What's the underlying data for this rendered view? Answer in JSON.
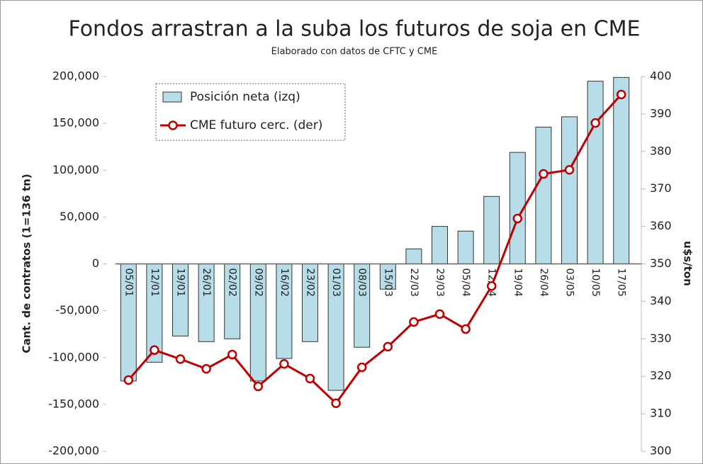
{
  "chart_data": {
    "type": "combo",
    "title": "Fondos arrastran a la suba los futuros de soja en CME",
    "subtitle": "Elaborado con datos de CFTC y CME",
    "ylabel": "Cant. de contratos (1=136 tn)",
    "y2label": "u$s/ton",
    "categories": [
      "05/01",
      "12/01",
      "19/01",
      "26/01",
      "02/02",
      "09/02",
      "16/02",
      "23/02",
      "01/03",
      "08/03",
      "15/03",
      "22/03",
      "29/03",
      "05/04",
      "12/04",
      "19/04",
      "26/04",
      "03/05",
      "10/05",
      "17/05"
    ],
    "series": [
      {
        "name": "Posición neta (izq)",
        "type": "bar",
        "axis": "y",
        "color": "#b7dde8",
        "values": [
          -125000,
          -105000,
          -77000,
          -83000,
          -80000,
          -125000,
          -101000,
          -83000,
          -135000,
          -89000,
          -27000,
          16000,
          40000,
          35000,
          72000,
          119000,
          146000,
          157000,
          195000,
          199000
        ]
      },
      {
        "name": "CME futuro cerc. (der)",
        "type": "line",
        "axis": "y2",
        "color": "#c00000",
        "values": [
          319,
          327,
          324.6,
          322,
          325.8,
          317.3,
          323.3,
          319.4,
          312.8,
          322.4,
          327.9,
          334.5,
          336.6,
          332.6,
          344.1,
          362.1,
          374,
          375.1,
          387.6,
          395.2
        ]
      }
    ],
    "ylim": [
      -200000,
      200000
    ],
    "yticks": [
      {
        "value": -200000,
        "label": "-200,000"
      },
      {
        "value": -150000,
        "label": "-150,000"
      },
      {
        "value": -100000,
        "label": "-100,000"
      },
      {
        "value": -50000,
        "label": "-50,000"
      },
      0,
      {
        "value": 50000,
        "label": "50,000"
      },
      {
        "value": 100000,
        "label": "100,000"
      },
      {
        "value": 150000,
        "label": "150,000"
      },
      {
        "value": 200000,
        "label": "200,000"
      }
    ],
    "y2lim": [
      300,
      400
    ],
    "y2ticks": [
      300,
      310,
      320,
      330,
      340,
      350,
      360,
      370,
      380,
      390,
      400
    ]
  }
}
